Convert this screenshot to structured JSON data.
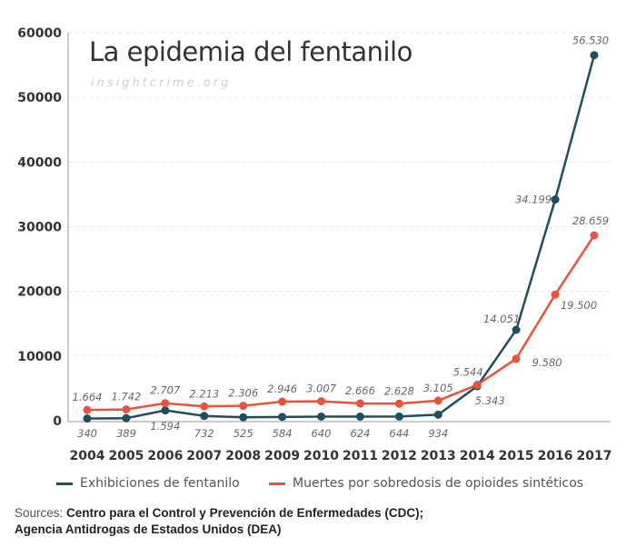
{
  "chart_data": {
    "type": "line",
    "title": "La epidemia del fentanilo",
    "subtitle": "insightcrime.org",
    "xlabel": "",
    "ylabel": "",
    "ylim": [
      0,
      60000
    ],
    "yticks": [
      0,
      10000,
      20000,
      30000,
      40000,
      50000,
      60000
    ],
    "ytick_labels": [
      "0",
      "10000",
      "20000",
      "30000",
      "40000",
      "50000",
      "60000"
    ],
    "grid": true,
    "legend_position": "bottom",
    "categories": [
      "2004",
      "2005",
      "2006",
      "2007",
      "2008",
      "2009",
      "2010",
      "2011",
      "2012",
      "2013",
      "2014",
      "2015",
      "2016",
      "2017"
    ],
    "series": [
      {
        "name": "Exhibiciones de fentanilo",
        "color": "#1f4e5f",
        "values": [
          340,
          389,
          1594,
          732,
          525,
          584,
          640,
          624,
          644,
          934,
          5343,
          14051,
          34199,
          56530
        ],
        "labels": [
          "340",
          "389",
          "1.594",
          "732",
          "525",
          "584",
          "640",
          "624",
          "644",
          "934",
          "5.343",
          "14.051",
          "34.199",
          "56.530"
        ]
      },
      {
        "name": "Muertes por sobredosis de opioides sintéticos",
        "color": "#e8533a",
        "values": [
          1664,
          1742,
          2707,
          2213,
          2306,
          2946,
          3007,
          2666,
          2628,
          3105,
          5544,
          9580,
          19500,
          28659
        ],
        "labels": [
          "1.664",
          "1.742",
          "2.707",
          "2.213",
          "2.306",
          "2.946",
          "3.007",
          "2.666",
          "2.628",
          "3.105",
          "5.544",
          "9.580",
          "19.500",
          "28.659"
        ]
      }
    ]
  },
  "sources": {
    "label": "Sources:",
    "line1": "Centro para el Control y Prevención de Enfermedades (CDC);",
    "line2": "Agencia Antidrogas de Estados Unidos (DEA)"
  }
}
